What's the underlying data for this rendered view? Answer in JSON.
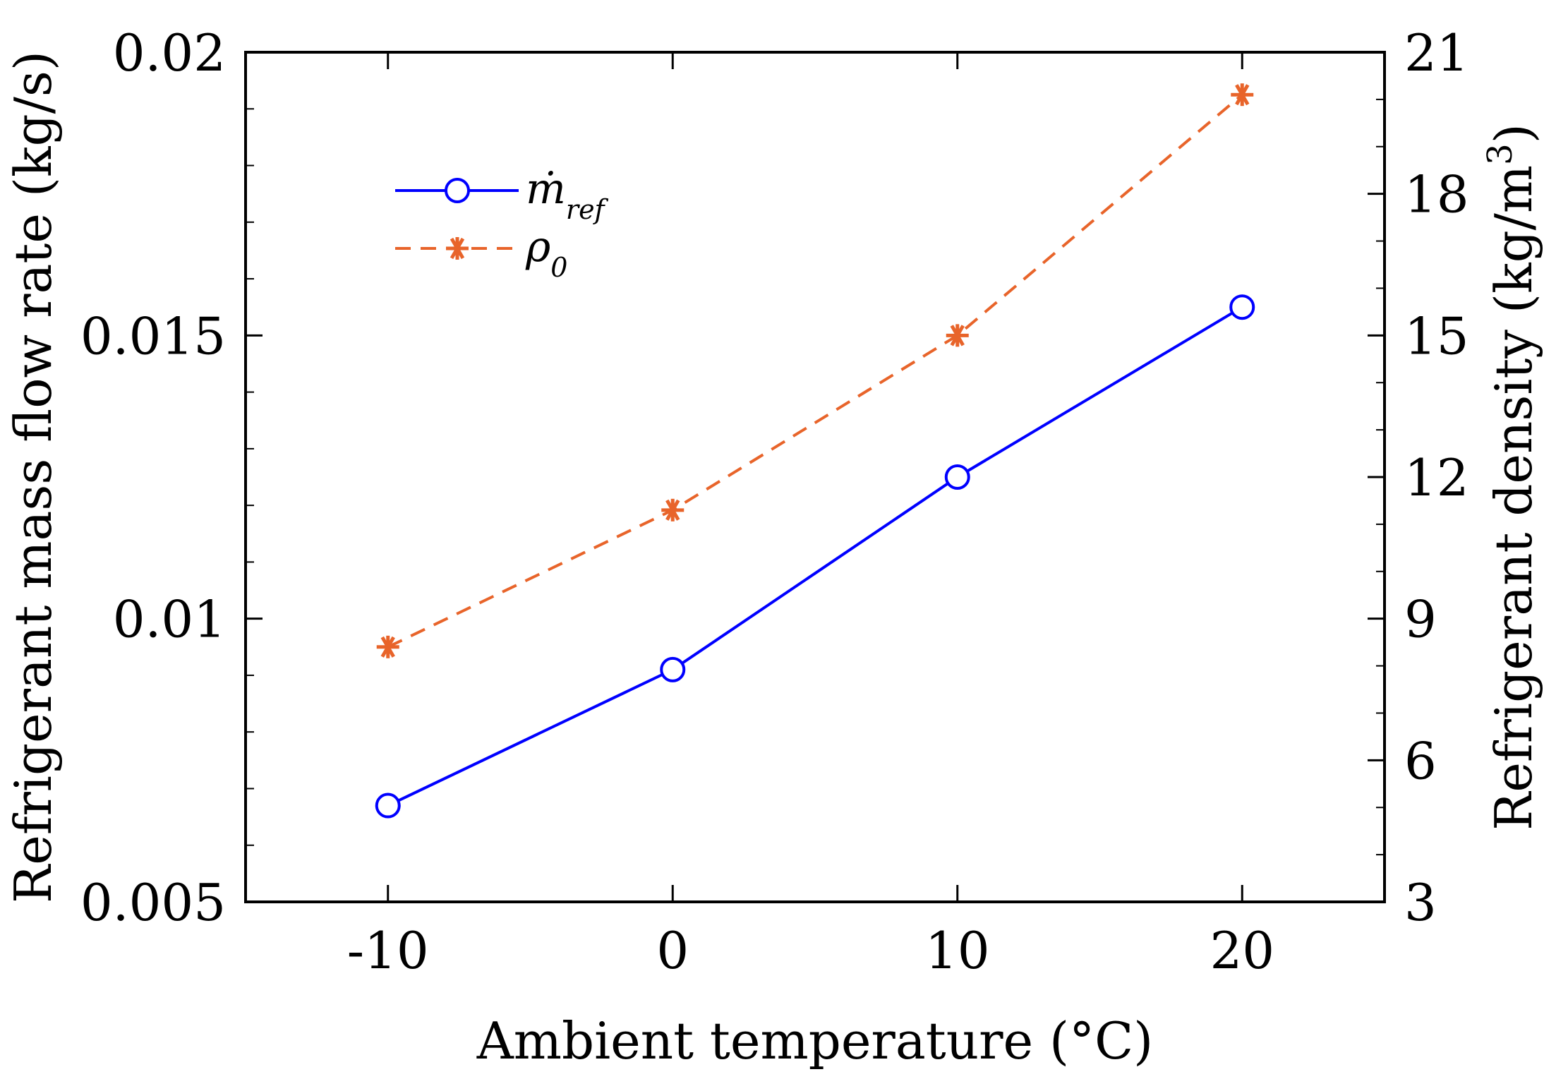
{
  "chart_data": {
    "type": "line",
    "title": "",
    "xlabel": "Ambient temperature (°C)",
    "ylabel_left": "Refrigerant mass flow rate (kg/s)",
    "ylabel_right_prefix": "Refrigerant density (kg/m",
    "ylabel_right_sup": "3",
    "ylabel_right_suffix": ")",
    "x": [
      -10,
      0,
      10,
      20
    ],
    "xlim": [
      -15,
      25
    ],
    "ylim_left": [
      0.005,
      0.02
    ],
    "ylim_right": [
      3,
      21
    ],
    "xticks": [
      "-10",
      "0",
      "10",
      "20"
    ],
    "yticks_left": [
      "0.005",
      "0.01",
      "0.015",
      "0.02"
    ],
    "yticks_right": [
      "3",
      "6",
      "9",
      "12",
      "15",
      "18",
      "21"
    ],
    "grid": false,
    "legend_position": "top-left",
    "series": [
      {
        "name_main": "ṁ",
        "name_sub": "ref",
        "axis": "left",
        "values": [
          0.0067,
          0.0091,
          0.0125,
          0.0155
        ],
        "color": "#0000ff",
        "line": "solid",
        "marker": "circle"
      },
      {
        "name_main": "ρ",
        "name_sub": "0",
        "axis": "right",
        "values": [
          8.4,
          11.3,
          15.0,
          20.1
        ],
        "color": "#e8642a",
        "line": "dashed",
        "marker": "asterisk"
      }
    ]
  }
}
